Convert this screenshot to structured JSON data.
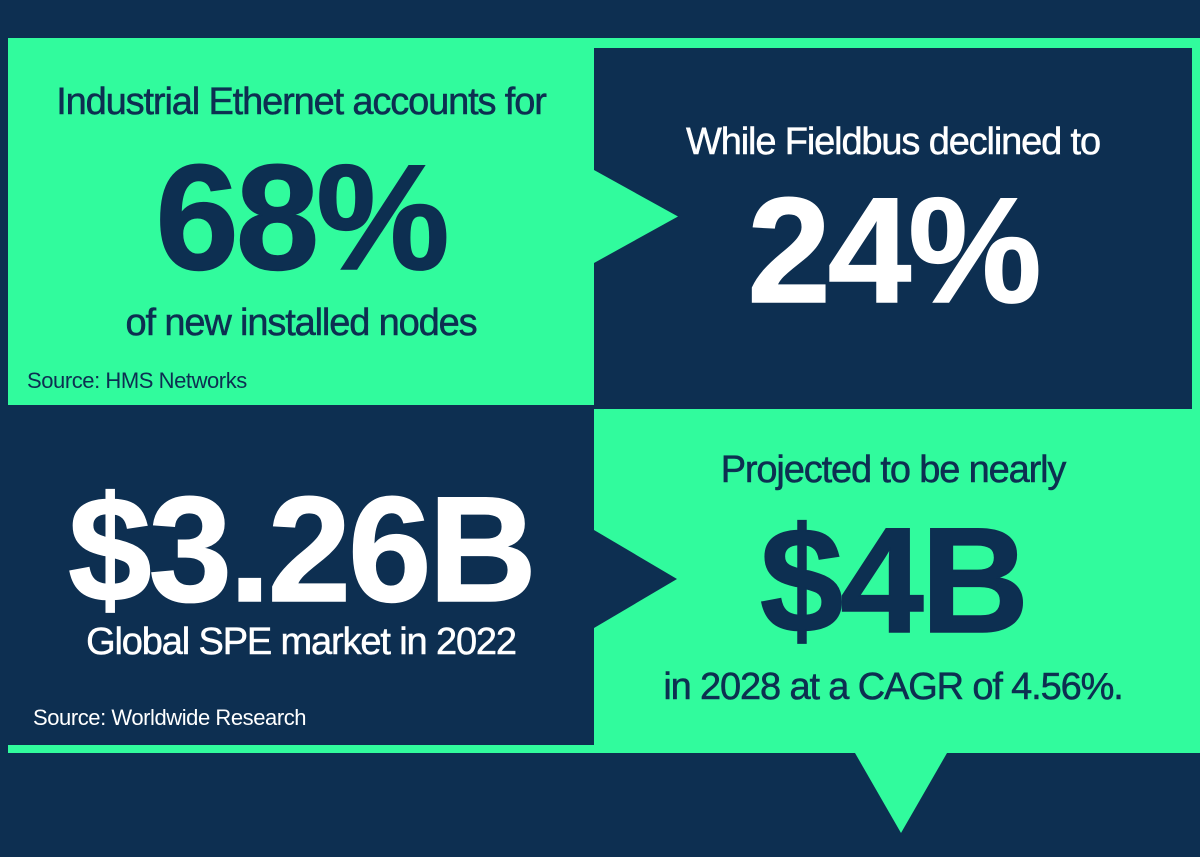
{
  "colors": {
    "navy": "#0D2F51",
    "green": "#31FB9D",
    "white": "#FFFFFF"
  },
  "panels": {
    "top_left": {
      "heading": "Industrial Ethernet accounts for",
      "stat": "68%",
      "subline": "of new installed nodes",
      "source": "Source: HMS Networks"
    },
    "top_right": {
      "heading": "While Fieldbus declined to",
      "stat": "24%"
    },
    "bottom_left": {
      "stat": "$3.26B",
      "subline": "Global SPE market in 2022",
      "source": "Source: Worldwide Research"
    },
    "bottom_right": {
      "heading": "Projected to be nearly",
      "stat": "$4B",
      "subline": "in 2028 at a CAGR of 4.56%."
    }
  }
}
